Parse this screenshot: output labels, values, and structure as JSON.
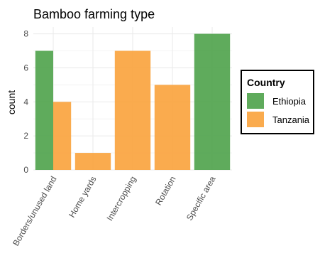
{
  "chart_data": {
    "type": "bar",
    "title": "Bamboo farming type",
    "xlabel": "",
    "ylabel": "count",
    "ylim": [
      0,
      8.4
    ],
    "yticks": [
      0,
      2,
      4,
      6,
      8
    ],
    "grid": true,
    "stacking": "dodge",
    "categories": [
      "Borders/unused land",
      "Home yards",
      "Intercropping",
      "Rotation",
      "Specific area"
    ],
    "series": [
      {
        "name": "Ethiopia",
        "color": "#4ea24a",
        "values": [
          7,
          null,
          null,
          null,
          8
        ]
      },
      {
        "name": "Tanzania",
        "color": "#f9a23b",
        "values": [
          4,
          1,
          7,
          5,
          null
        ]
      }
    ],
    "legend": {
      "title": "Country",
      "placement": "right"
    }
  }
}
